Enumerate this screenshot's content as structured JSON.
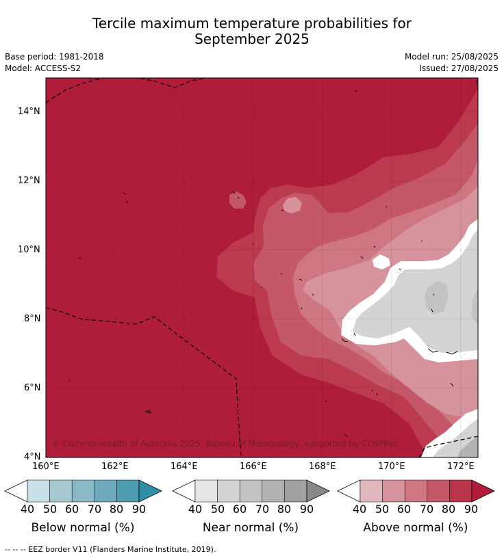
{
  "title_line1": "Tercile maximum temperature probabilities for",
  "title_line2": "September 2025",
  "base_period": "Base period: 1981-2018",
  "model": "Model: ACCESS-S2",
  "model_run": "Model run: 25/08/2025",
  "issued": "Issued: 27/08/2025",
  "copyright": "© Commonwealth of Australia 2025, Bureau of Meteorology, supported by COSPPac",
  "footnote": "--  --  -- EEZ border V11 (Flanders Marine Institute, 2019).",
  "lat_ticks": [
    "14°N",
    "12°N",
    "10°N",
    "8°N",
    "6°N",
    "4°N"
  ],
  "lon_ticks": [
    "160°E",
    "162°E",
    "164°E",
    "166°E",
    "168°E",
    "170°E",
    "172°E"
  ],
  "colorbar_ticks": [
    "40",
    "50",
    "60",
    "70",
    "80",
    "90"
  ],
  "colorbars": {
    "below": {
      "label": "Below normal (%)",
      "colors": [
        "#ffffff",
        "#c9e1e8",
        "#a6c8d0",
        "#8ab8c5",
        "#6eaabb",
        "#4e9bb0",
        "#2f8ea6"
      ]
    },
    "near": {
      "label": "Near normal (%)",
      "colors": [
        "#ffffff",
        "#e5e5e5",
        "#d4d4d4",
        "#c3c3c3",
        "#b2b2b2",
        "#a0a0a0",
        "#888888"
      ]
    },
    "above": {
      "label": "Above normal (%)",
      "colors": [
        "#ffffff",
        "#e1b6bd",
        "#d6939c",
        "#ce7783",
        "#c45868",
        "#ba3549",
        "#b01d3a"
      ]
    }
  },
  "map_colors": {
    "above_90": "#b01d3a",
    "above_80": "#bb3a4e",
    "above_70": "#c45868",
    "above_60": "#ce7783",
    "above_50": "#d6939c",
    "near_50": "#d4d4d4",
    "near_60": "#c3c3c3",
    "near_70": "#b2b2b2",
    "near_80": "#a0a0a0"
  }
}
